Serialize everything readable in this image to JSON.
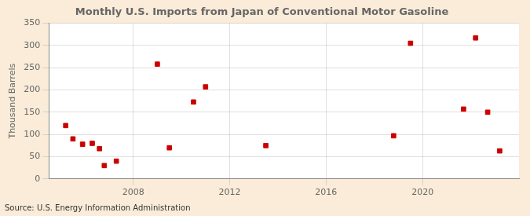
{
  "chart_data": {
    "type": "scatter",
    "title": "Monthly U.S. Imports from Japan of Conventional Motor Gasoline",
    "ylabel": "Thousand Barrels",
    "source": "Source: U.S. Energy Information Administration",
    "x": [
      2005.2,
      2005.5,
      2005.9,
      2006.3,
      2006.6,
      2006.8,
      2007.3,
      2009.0,
      2009.5,
      2010.5,
      2011.0,
      2013.5,
      2018.8,
      2019.5,
      2021.7,
      2022.2,
      2022.7,
      2023.2
    ],
    "values": [
      120,
      90,
      78,
      80,
      68,
      30,
      40,
      258,
      70,
      173,
      207,
      75,
      97,
      305,
      157,
      317,
      150,
      63
    ],
    "color": "#cc0000",
    "marker": "square",
    "xlim": [
      2004.5,
      2024.0
    ],
    "xticks": [
      2008,
      2012,
      2016,
      2020
    ],
    "ylim": [
      0,
      350
    ],
    "yticks": [
      0,
      50,
      100,
      150,
      200,
      250,
      300,
      350
    ],
    "grid": true
  }
}
